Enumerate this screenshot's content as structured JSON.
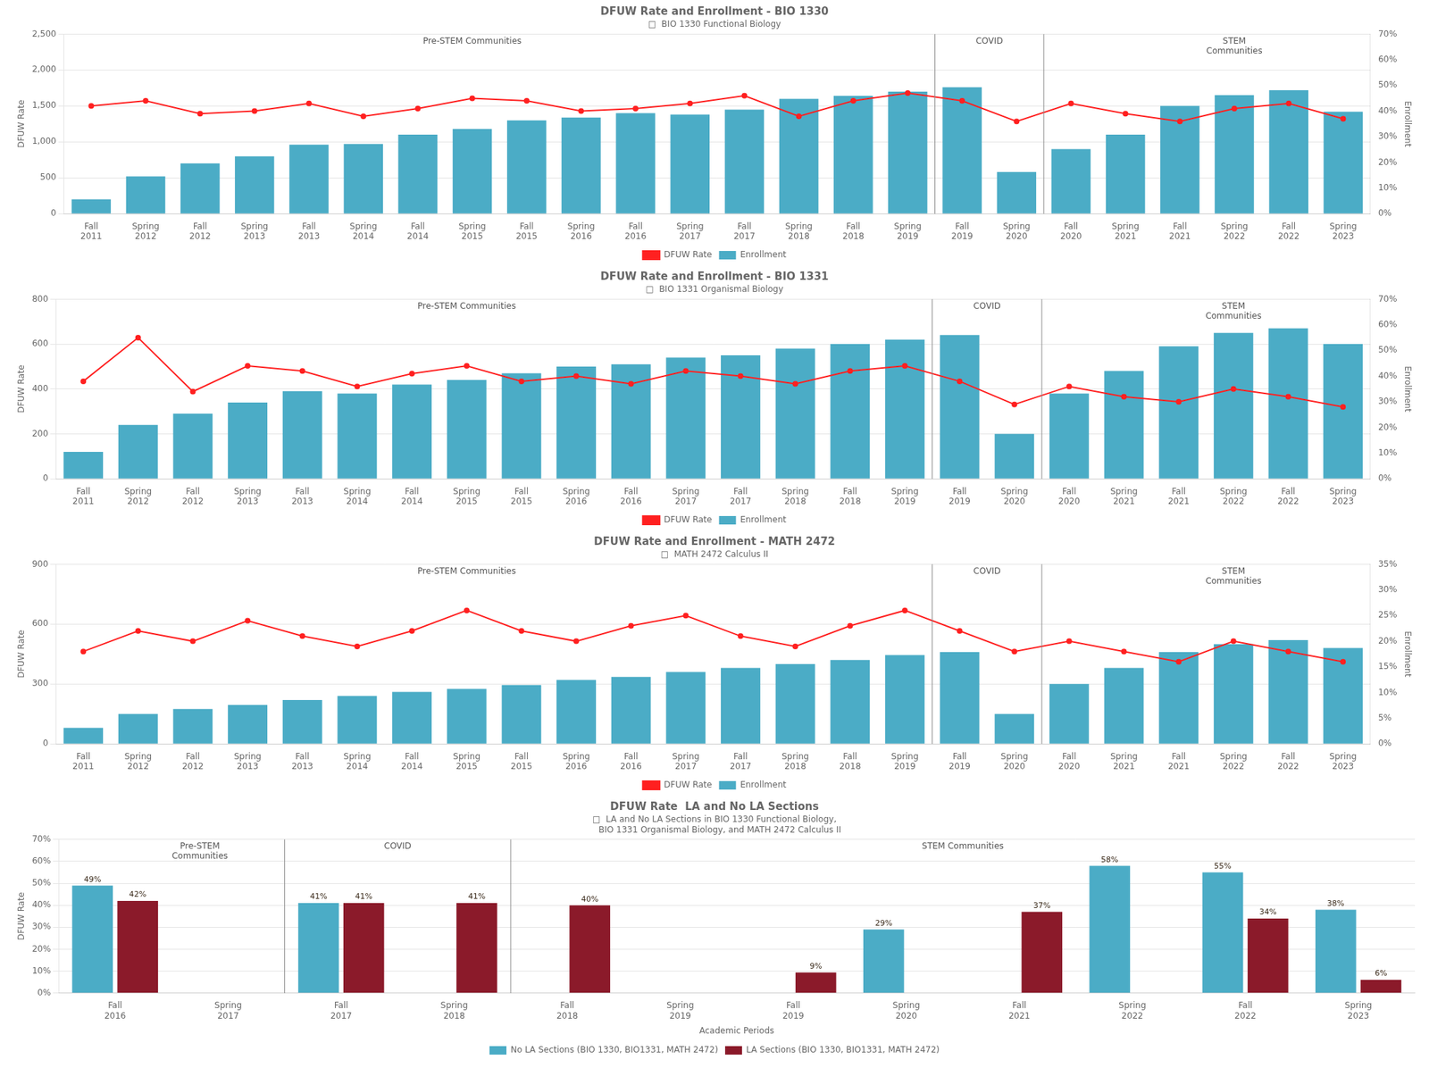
{
  "chart_data": [
    {
      "type": "bar",
      "title": "DFUW Rate and Enrollment - BIO 1330",
      "subtitle": "□  BIO 1330 Functional Biology",
      "categories": [
        "Fall\n2011",
        "Spring\n2012",
        "Fall\n2012",
        "Spring\n2013",
        "Fall\n2013",
        "Spring\n2014",
        "Fall\n2014",
        "Spring\n2015",
        "Fall\n2015",
        "Spring\n2016",
        "Fall\n2016",
        "Spring\n2017",
        "Fall\n2017",
        "Spring\n2018",
        "Fall\n2018",
        "Spring\n2019",
        "Fall\n2019",
        "Spring\n2020",
        "Fall\n2020",
        "Spring\n2021",
        "Fall\n2021",
        "Spring\n2022",
        "Fall\n2022",
        "Spring\n2023"
      ],
      "series": [
        {
          "name": "Enrollment",
          "type": "bar",
          "color": "#4BACC6",
          "values": [
            200,
            520,
            700,
            800,
            960,
            970,
            1100,
            1180,
            1300,
            1340,
            1400,
            1380,
            1450,
            1600,
            1640,
            1700,
            1760,
            580,
            900,
            1100,
            1500,
            1650,
            1720,
            1420
          ]
        },
        {
          "name": "DFUW Rate",
          "type": "line",
          "color": "#FF2020",
          "marker": "o",
          "line_style": "solid",
          "axis": "y2",
          "values": [
            0.42,
            0.44,
            0.39,
            0.4,
            0.43,
            0.38,
            0.41,
            0.45,
            0.44,
            0.4,
            0.41,
            0.43,
            0.46,
            0.38,
            0.44,
            0.47,
            0.44,
            0.36,
            0.43,
            0.39,
            0.36,
            0.41,
            0.43,
            0.37
          ]
        }
      ],
      "ylabel": "DFUW Rate",
      "y2label": "Enrollment",
      "ylim": [
        0,
        2500
      ],
      "yticks": [
        0,
        500,
        {
          "value": 1000,
          "label": "1,000"
        },
        {
          "value": 1500,
          "label": "1,500"
        },
        {
          "value": 2000,
          "label": "2,000"
        },
        {
          "value": 2500,
          "label": "2,500"
        }
      ],
      "y2lim": [
        0,
        0.7
      ],
      "y2ticks": [
        {
          "value": 0,
          "label": "0%"
        },
        {
          "value": 0.1,
          "label": "10%"
        },
        {
          "value": 0.2,
          "label": "20%"
        },
        {
          "value": 0.3,
          "label": "30%"
        },
        {
          "value": 0.4,
          "label": "40%"
        },
        {
          "value": 0.5,
          "label": "50%"
        },
        {
          "value": 0.6,
          "label": "60%"
        },
        {
          "value": 0.7,
          "label": "70%"
        }
      ],
      "grid": true,
      "legend": "lower center",
      "annotations": [
        {
          "text": "Pre-STEM Communities",
          "x": 7
        },
        {
          "text": "COVID",
          "x": 16.5
        },
        {
          "text": "STEM\nCommunities",
          "x": 21
        }
      ],
      "vlines": [
        15.5,
        17.5
      ]
    },
    {
      "type": "bar",
      "title": "DFUW Rate and Enrollment - BIO 1331",
      "subtitle": "□  BIO 1331 Organismal Biology",
      "categories": [
        "Fall\n2011",
        "Spring\n2012",
        "Fall\n2012",
        "Spring\n2013",
        "Fall\n2013",
        "Spring\n2014",
        "Fall\n2014",
        "Spring\n2015",
        "Fall\n2015",
        "Spring\n2016",
        "Fall\n2016",
        "Spring\n2017",
        "Fall\n2017",
        "Spring\n2018",
        "Fall\n2018",
        "Spring\n2019",
        "Fall\n2019",
        "Spring\n2020",
        "Fall\n2020",
        "Spring\n2021",
        "Fall\n2021",
        "Spring\n2022",
        "Fall\n2022",
        "Spring\n2023"
      ],
      "series": [
        {
          "name": "Enrollment",
          "type": "bar",
          "color": "#4BACC6",
          "values": [
            120,
            240,
            290,
            340,
            390,
            380,
            420,
            440,
            470,
            500,
            510,
            540,
            550,
            580,
            600,
            620,
            640,
            200,
            380,
            480,
            590,
            650,
            670,
            600
          ]
        },
        {
          "name": "DFUW Rate",
          "type": "line",
          "color": "#FF2020",
          "marker": "o",
          "line_style": "solid",
          "axis": "y2",
          "values": [
            0.38,
            0.55,
            0.34,
            0.44,
            0.42,
            0.36,
            0.41,
            0.44,
            0.38,
            0.4,
            0.37,
            0.42,
            0.4,
            0.37,
            0.42,
            0.44,
            0.38,
            0.29,
            0.36,
            0.32,
            0.3,
            0.35,
            0.32,
            0.28
          ]
        }
      ],
      "ylabel": "DFUW Rate",
      "y2label": "Enrollment",
      "ylim": [
        0,
        800
      ],
      "yticks": [
        0,
        200,
        400,
        600,
        800
      ],
      "y2lim": [
        0,
        0.7
      ],
      "y2ticks": [
        {
          "value": 0,
          "label": "0%"
        },
        {
          "value": 0.1,
          "label": "10%"
        },
        {
          "value": 0.2,
          "label": "20%"
        },
        {
          "value": 0.3,
          "label": "30%"
        },
        {
          "value": 0.4,
          "label": "40%"
        },
        {
          "value": 0.5,
          "label": "50%"
        },
        {
          "value": 0.6,
          "label": "60%"
        },
        {
          "value": 0.7,
          "label": "70%"
        }
      ],
      "grid": true,
      "legend": "lower center",
      "annotations": [
        {
          "text": "Pre-STEM Communities",
          "x": 7
        },
        {
          "text": "COVID",
          "x": 16.5
        },
        {
          "text": "STEM\nCommunities",
          "x": 21
        }
      ],
      "vlines": [
        15.5,
        17.5
      ]
    },
    {
      "type": "bar",
      "title": "DFUW Rate and Enrollment - MATH 2472",
      "subtitle": "□  MATH 2472 Calculus II",
      "categories": [
        "Fall\n2011",
        "Spring\n2012",
        "Fall\n2012",
        "Spring\n2013",
        "Fall\n2013",
        "Spring\n2014",
        "Fall\n2014",
        "Spring\n2015",
        "Fall\n2015",
        "Spring\n2016",
        "Fall\n2016",
        "Spring\n2017",
        "Fall\n2017",
        "Spring\n2018",
        "Fall\n2018",
        "Spring\n2019",
        "Fall\n2019",
        "Spring\n2020",
        "Fall\n2020",
        "Spring\n2021",
        "Fall\n2021",
        "Spring\n2022",
        "Fall\n2022",
        "Spring\n2023"
      ],
      "series": [
        {
          "name": "Enrollment",
          "type": "bar",
          "color": "#4BACC6",
          "values": [
            80,
            150,
            175,
            195,
            220,
            240,
            260,
            275,
            295,
            320,
            335,
            360,
            380,
            400,
            420,
            445,
            460,
            150,
            300,
            380,
            460,
            500,
            520,
            480
          ]
        },
        {
          "name": "DFUW Rate",
          "type": "line",
          "color": "#FF2020",
          "marker": "o",
          "line_style": "solid",
          "axis": "y2",
          "values": [
            0.18,
            0.22,
            0.2,
            0.24,
            0.21,
            0.19,
            0.22,
            0.26,
            0.22,
            0.2,
            0.23,
            0.25,
            0.21,
            0.19,
            0.23,
            0.26,
            0.22,
            0.18,
            0.2,
            0.18,
            0.16,
            0.2,
            0.18,
            0.16
          ]
        }
      ],
      "ylabel": "DFUW Rate",
      "y2label": "Enrollment",
      "ylim": [
        0,
        900
      ],
      "yticks": [
        0,
        300,
        600,
        900
      ],
      "y2lim": [
        0,
        0.35
      ],
      "y2ticks": [
        {
          "value": 0,
          "label": "0%"
        },
        {
          "value": 0.05,
          "label": "5%"
        },
        {
          "value": 0.1,
          "label": "10%"
        },
        {
          "value": 0.15,
          "label": "15%"
        },
        {
          "value": 0.2,
          "label": "20%"
        },
        {
          "value": 0.25,
          "label": "25%"
        },
        {
          "value": 0.3,
          "label": "30%"
        },
        {
          "value": 0.35,
          "label": "35%"
        }
      ],
      "grid": true,
      "legend": "lower center",
      "annotations": [
        {
          "text": "Pre-STEM Communities",
          "x": 7
        },
        {
          "text": "COVID",
          "x": 16.5
        },
        {
          "text": "STEM\nCommunities",
          "x": 21
        }
      ],
      "vlines": [
        15.5,
        17.5
      ]
    },
    {
      "type": "bar",
      "title": "DFUW Rate  LA and No LA Sections",
      "subtitle": "□  LA and No LA Sections in BIO 1330 Functional Biology,\n    BIO 1331 Organismal Biology, and MATH 2472 Calculus II",
      "categories": [
        "Fall\n2016",
        "Spring\n2017",
        "Fall\n2017",
        "Spring\n2018",
        "Fall\n2018",
        "Spring\n2019",
        "Fall\n2019",
        "Spring\n2020",
        "Fall\n2021",
        "Spring\n2022",
        "Fall\n2022",
        "Spring\n2023"
      ],
      "series": [
        {
          "name": "No LA Sections (BIO 1330, BIO1331, MATH 2472)",
          "color": "#4BACC6",
          "values": [
            0.49,
            0,
            0.41,
            0,
            0,
            0,
            0,
            0.29,
            0,
            0.58,
            0.55,
            0.38
          ],
          "value_labels": [
            "49%",
            null,
            "41%",
            null,
            null,
            null,
            null,
            "29%",
            null,
            "58%",
            "55%",
            "38%"
          ]
        },
        {
          "name": "LA Sections (BIO 1330, BIO1331, MATH 2472)",
          "color": "#8B1A2A",
          "values": [
            0.42,
            0,
            0.41,
            0.41,
            0.4,
            0,
            0.094,
            0,
            0.37,
            0,
            0.34,
            0.06
          ],
          "value_labels": [
            "42%",
            null,
            "41%",
            "41%",
            "40%",
            null,
            "9%",
            null,
            "37%",
            null,
            "34%",
            "6%"
          ]
        }
      ],
      "xlabel": "Academic Periods",
      "ylabel": "DFUW Rate",
      "ylim": [
        0,
        0.7
      ],
      "yticks": [
        {
          "value": 0,
          "label": "0%"
        },
        {
          "value": 0.1,
          "label": "10%"
        },
        {
          "value": 0.2,
          "label": "20%"
        },
        {
          "value": 0.3,
          "label": "30%"
        },
        {
          "value": 0.4,
          "label": "40%"
        },
        {
          "value": 0.5,
          "label": "50%"
        },
        {
          "value": 0.6,
          "label": "60%"
        },
        {
          "value": 0.7,
          "label": "70%"
        }
      ],
      "grid": true,
      "data_labels": true,
      "legend": "lower center",
      "annotations": [
        {
          "text": "Pre-STEM\nCommunities",
          "x": 0.75
        },
        {
          "text": "COVID",
          "x": 2.5
        },
        {
          "text": "STEM Communities",
          "x": 7.5
        }
      ],
      "vlines": [
        1.5,
        3.5
      ]
    }
  ]
}
